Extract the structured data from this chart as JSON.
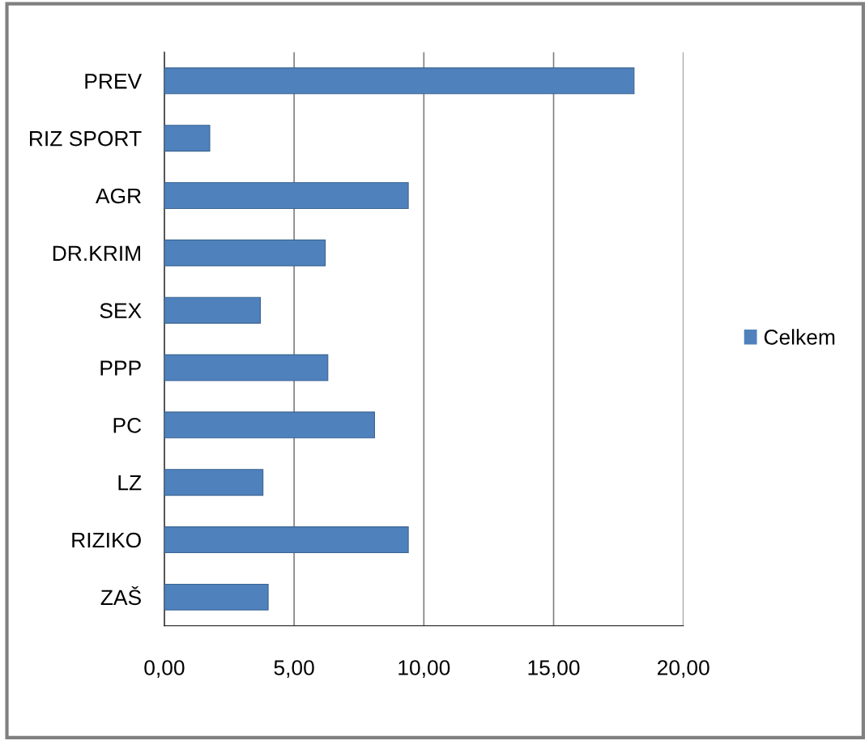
{
  "chart_data": {
    "type": "bar",
    "orientation": "horizontal",
    "categories": [
      "PREV",
      "RIZ SPORT",
      "AGR",
      "DR.KRIM",
      "SEX",
      "PPP",
      "PC",
      "LZ",
      "RIZIKO",
      "ZAŠ"
    ],
    "series": [
      {
        "name": "Celkem",
        "color": "#4f81bd",
        "values": [
          18.1,
          1.75,
          9.4,
          6.2,
          3.7,
          6.3,
          8.1,
          3.8,
          9.4,
          4.0
        ]
      }
    ],
    "xlim": [
      0,
      20
    ],
    "xticks": [
      {
        "value": 0,
        "label": "0,00"
      },
      {
        "value": 5,
        "label": "5,00"
      },
      {
        "value": 10,
        "label": "10,00"
      },
      {
        "value": 15,
        "label": "15,00"
      },
      {
        "value": 20,
        "label": "20,00"
      }
    ],
    "grid": "x",
    "legend": "right"
  }
}
